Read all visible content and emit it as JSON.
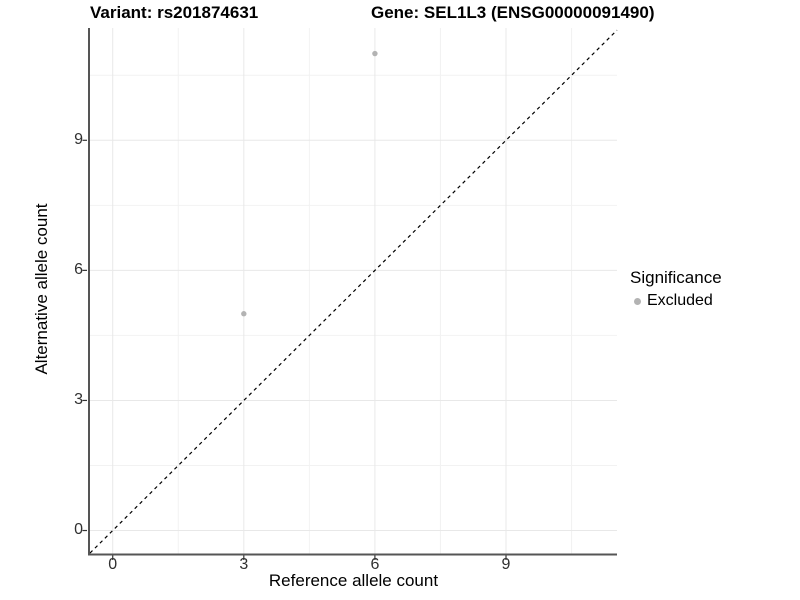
{
  "chart_data": {
    "type": "scatter",
    "titles": {
      "left": "Variant: rs201874631",
      "right": "Gene: SEL1L3 (ENSG00000091490)"
    },
    "xlabel": "Reference allele count",
    "ylabel": "Alternative allele count",
    "xlim": [
      -0.52,
      11.54
    ],
    "ylim": [
      -0.53,
      11.59
    ],
    "x_ticks": [
      "0",
      "3",
      "6",
      "9"
    ],
    "x_tick_values": [
      0,
      3,
      6,
      9
    ],
    "y_ticks": [
      "0",
      "3",
      "6",
      "9"
    ],
    "y_tick_values": [
      0,
      3,
      6,
      9
    ],
    "minor_tick_values": [
      1.5,
      4.5,
      7.5,
      10.5
    ],
    "grid": {
      "major": true,
      "minor": true
    },
    "series": [
      {
        "name": "Excluded",
        "color": "#b3b3b3",
        "points": [
          {
            "x": 3,
            "y": 5
          },
          {
            "x": 6,
            "y": 11
          }
        ]
      }
    ],
    "reference_line": {
      "type": "identity",
      "slope": 1,
      "intercept": 0,
      "style": "dashed",
      "color": "#000000"
    },
    "legend": {
      "title": "Significance",
      "position": "right",
      "entries": [
        {
          "label": "Excluded",
          "color": "#b3b3b3",
          "marker": "circle"
        }
      ]
    }
  },
  "colors": {
    "background": "#ffffff",
    "grid_major": "#e8e8e8",
    "grid_minor": "#f2f2f2",
    "axis_line": "#555555",
    "tick_mark": "#333333",
    "tick_label": "#303030",
    "text": "#000000"
  }
}
